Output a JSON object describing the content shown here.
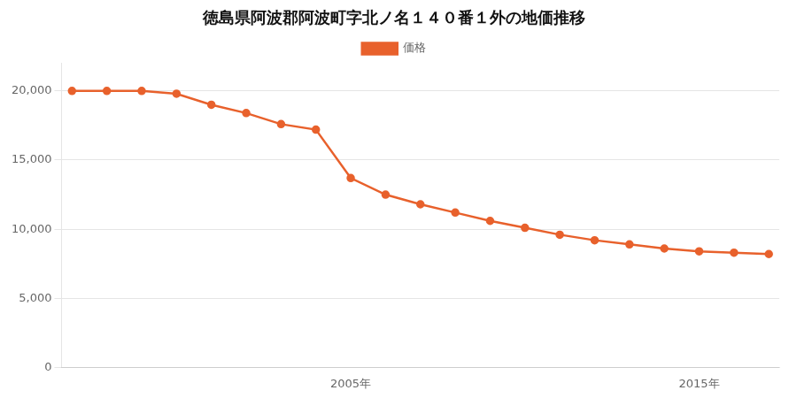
{
  "chart_data": {
    "type": "line",
    "title": "徳島県阿波郡阿波町字北ノ名１４０番１外の地価推移",
    "x": [
      1997,
      1998,
      1999,
      2000,
      2001,
      2002,
      2003,
      2004,
      2005,
      2006,
      2007,
      2008,
      2009,
      2010,
      2011,
      2012,
      2013,
      2014,
      2015,
      2016,
      2017
    ],
    "series": [
      {
        "name": "価格",
        "color": "#e8612c",
        "values": [
          20000,
          20000,
          20000,
          19800,
          19000,
          18400,
          17600,
          17200,
          13700,
          12500,
          11800,
          11200,
          10600,
          10100,
          9600,
          9200,
          8900,
          8600,
          8400,
          8300,
          8200
        ]
      }
    ],
    "xlim": [
      1996.7,
      2017.3
    ],
    "xticks": [
      {
        "value": 2005,
        "label": "2005年"
      },
      {
        "value": 2015,
        "label": "2015年"
      }
    ],
    "ylim": [
      0,
      22000
    ],
    "yticks": [
      0,
      {
        "value": 5000,
        "label": "5,000"
      },
      {
        "value": 10000,
        "label": "10,000"
      },
      {
        "value": 15000,
        "label": "15,000"
      },
      {
        "value": 20000,
        "label": "20,000"
      }
    ],
    "grid": true,
    "legend": "top",
    "marker": "circle"
  }
}
